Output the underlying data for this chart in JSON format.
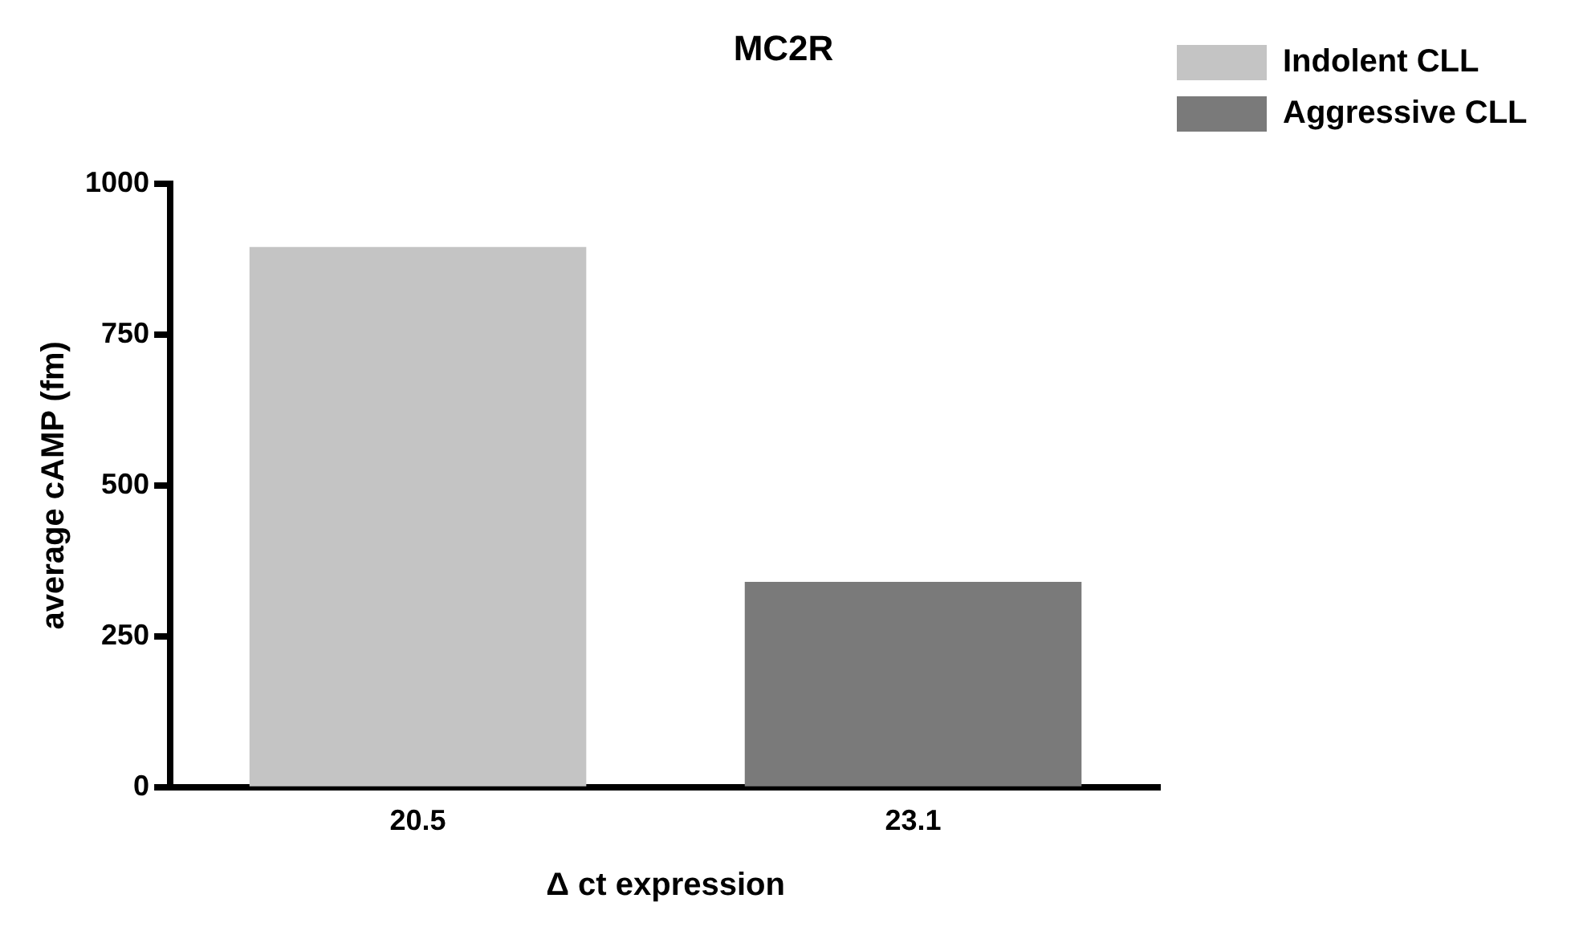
{
  "chart_data": {
    "type": "bar",
    "title": "MC2R",
    "xlabel": "Δ ct expression",
    "ylabel": "average cAMP (fm)",
    "categories": [
      "20.5",
      "23.1"
    ],
    "series": [
      {
        "name": "Indolent CLL",
        "color": "#c4c4c4",
        "values": [
          895,
          null
        ]
      },
      {
        "name": "Aggressive CLL",
        "color": "#7a7a7a",
        "values": [
          null,
          340
        ]
      }
    ],
    "ylim": [
      0,
      1000
    ],
    "yticks": [
      0,
      250,
      500,
      750,
      1000
    ],
    "grid": false,
    "legend": "top right"
  }
}
